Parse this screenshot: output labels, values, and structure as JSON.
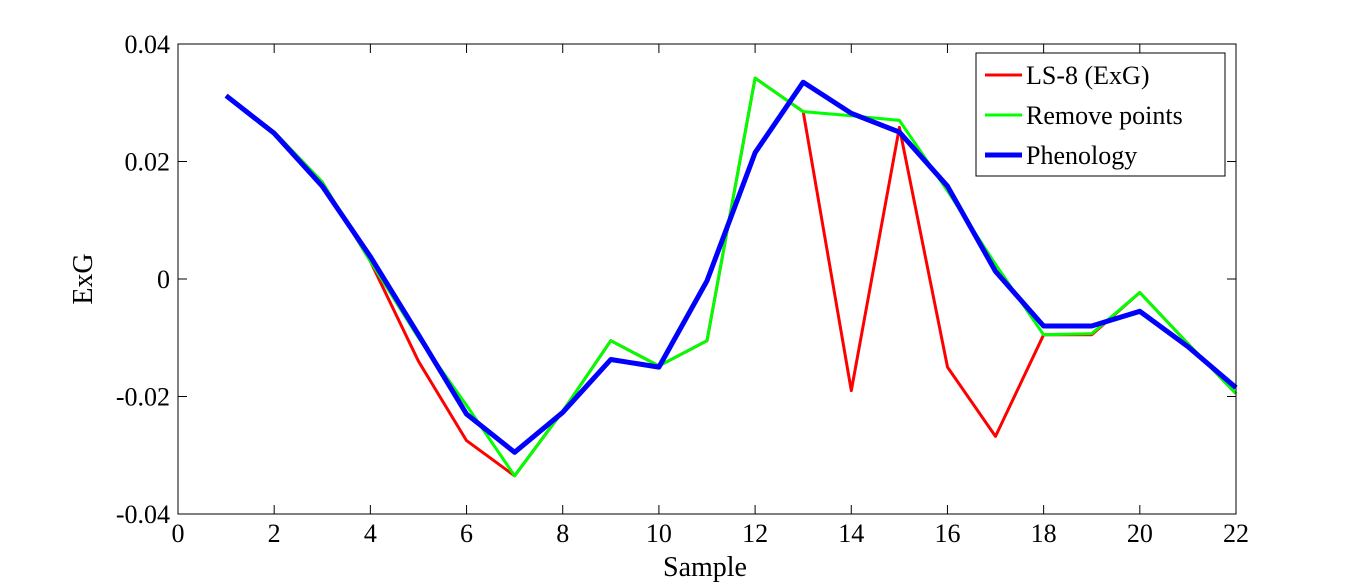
{
  "chart_data": {
    "type": "line",
    "xlabel": "Sample",
    "ylabel": "ExG",
    "xlim": [
      0,
      22
    ],
    "ylim": [
      -0.04,
      0.04
    ],
    "xticks": [
      0,
      2,
      4,
      6,
      8,
      10,
      12,
      14,
      16,
      18,
      20,
      22
    ],
    "yticks": [
      -0.04,
      -0.02,
      0,
      0.02,
      0.04
    ],
    "xtick_labels": [
      "0",
      "2",
      "4",
      "6",
      "8",
      "10",
      "12",
      "14",
      "16",
      "18",
      "20",
      "22"
    ],
    "ytick_labels": [
      "-0.04",
      "-0.02",
      "0",
      "0.02",
      "0.04"
    ],
    "grid": false,
    "legend_position": "top-right",
    "x": [
      1,
      2,
      3,
      4,
      5,
      6,
      7,
      8,
      9,
      10,
      11,
      12,
      13,
      14,
      15,
      16,
      17,
      18,
      19,
      20,
      21,
      22
    ],
    "series": [
      {
        "name": "LS-8 (ExG)",
        "color": "#ff0000",
        "values": [
          0.0312,
          0.025,
          0.0165,
          0.003,
          -0.014,
          -0.0275,
          -0.0335,
          -0.0225,
          -0.0105,
          -0.0148,
          -0.0105,
          0.0342,
          0.0285,
          -0.019,
          0.0258,
          -0.015,
          -0.0268,
          -0.0095,
          -0.0095,
          -0.0023,
          -0.011,
          -0.0195
        ]
      },
      {
        "name": "Remove points",
        "color": "#00ff00",
        "values": [
          0.0312,
          0.025,
          0.0165,
          0.003,
          -0.01,
          -0.0215,
          -0.0335,
          -0.0225,
          -0.0105,
          -0.0148,
          -0.0105,
          0.0342,
          0.0285,
          0.0278,
          0.027,
          0.015,
          0.0025,
          -0.0095,
          -0.0093,
          -0.0023,
          -0.011,
          -0.0195
        ]
      },
      {
        "name": "Phenology",
        "color": "#0000ff",
        "values": [
          0.0312,
          0.0248,
          0.0158,
          0.0038,
          -0.0095,
          -0.023,
          -0.0295,
          -0.0227,
          -0.0137,
          -0.015,
          -0.0003,
          0.0215,
          0.0335,
          0.0282,
          0.025,
          0.0158,
          0.0013,
          -0.008,
          -0.008,
          -0.0055,
          -0.0115,
          -0.0185
        ]
      }
    ]
  }
}
